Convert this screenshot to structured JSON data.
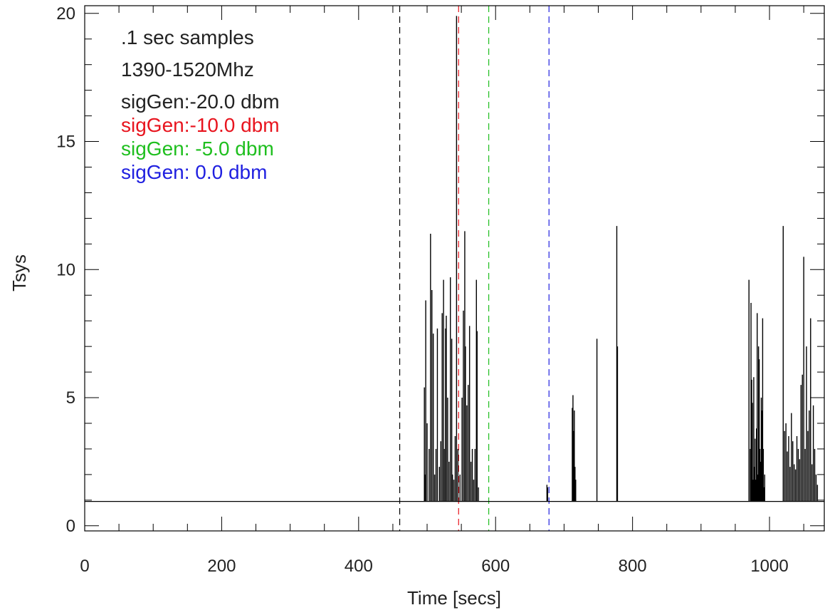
{
  "chart_data": {
    "type": "line",
    "title": "",
    "xlabel": "Time [secs]",
    "ylabel": "Tsys",
    "xlim": [
      0,
      1080
    ],
    "ylim": [
      -0.2,
      20.3
    ],
    "x_ticks": [
      0,
      200,
      400,
      600,
      800,
      1000
    ],
    "y_ticks": [
      0,
      5,
      10,
      15,
      20
    ],
    "x_minor_step": 50,
    "y_minor_step": 1,
    "grid": false,
    "baseline": 0.95,
    "colors": {
      "black": "#000000",
      "red": "#e8141e",
      "green": "#1fbf1f",
      "blue": "#2020e0"
    },
    "annotations": [
      {
        "text": ".1 sec samples",
        "color": "#222222"
      },
      {
        "text": "1390-1520Mhz",
        "color": "#222222"
      },
      {
        "text": "sigGen:-20.0 dbm",
        "color": "#222222"
      },
      {
        "text": "sigGen:-10.0 dbm",
        "color": "#e8141e"
      },
      {
        "text": "sigGen: -5.0 dbm",
        "color": "#1fbf1f"
      },
      {
        "text": "sigGen:  0.0 dbm",
        "color": "#2020e0"
      }
    ],
    "markers": [
      {
        "x": 460,
        "color": "#000000"
      },
      {
        "x": 546,
        "color": "#e8141e"
      },
      {
        "x": 590,
        "color": "#1fbf1f"
      },
      {
        "x": 678,
        "color": "#2020e0"
      }
    ],
    "series": [
      {
        "color": "#000000",
        "x": [
          496,
          497,
          498,
          500,
          503,
          505,
          507,
          509,
          511,
          513,
          515,
          518,
          520,
          522,
          524,
          525,
          527,
          528,
          530,
          532,
          534,
          536,
          537,
          539,
          541,
          543,
          545,
          548,
          551,
          553,
          555,
          556,
          558,
          560,
          562,
          564,
          566,
          568,
          570,
          572,
          573,
          575,
          675,
          676,
          712,
          713,
          714,
          715,
          716,
          717,
          748,
          777,
          778,
          970,
          972,
          973,
          974,
          975,
          976,
          977,
          978,
          979,
          980,
          981,
          982,
          983,
          984,
          985,
          986,
          987,
          988,
          989,
          990,
          991,
          992,
          993,
          1020,
          1022,
          1024,
          1026,
          1028,
          1030,
          1032,
          1034,
          1036,
          1038,
          1040,
          1042,
          1044,
          1046,
          1048,
          1050,
          1052,
          1054,
          1056,
          1058,
          1060,
          1062,
          1064,
          1066,
          1068,
          1070
        ],
        "y": [
          5.4,
          2.0,
          8.8,
          4.0,
          3.0,
          11.4,
          9.2,
          7.5,
          2.0,
          3.0,
          7.7,
          2.3,
          3.3,
          8.3,
          9.6,
          3.0,
          7.7,
          8.2,
          5.0,
          2.5,
          9.7,
          7.3,
          2.0,
          1.8,
          3.5,
          19.9,
          3.0,
          2.0,
          5.0,
          8.4,
          11.5,
          7.0,
          4.7,
          5.5,
          7.8,
          2.5,
          3.0,
          1.8,
          3.0,
          9.6,
          7.6,
          1.5,
          1.6,
          1.5,
          4.6,
          5.1,
          3.7,
          4.5,
          2.3,
          1.8,
          7.3,
          11.7,
          7.0,
          9.6,
          3.0,
          8.7,
          5.7,
          4.8,
          1.8,
          5.8,
          2.3,
          3.4,
          1.8,
          3.8,
          8.3,
          2.0,
          7.0,
          6.5,
          3.0,
          2.5,
          5.0,
          4.5,
          8.1,
          3.0,
          1.5,
          2.0,
          11.7,
          3.7,
          4.0,
          2.9,
          3.5,
          2.3,
          4.4,
          3.3,
          2.4,
          2.2,
          3.5,
          3.0,
          2.6,
          5.5,
          5.9,
          10.5,
          3.0,
          7.0,
          3.7,
          4.5,
          8.1,
          2.4,
          4.7,
          3.0,
          2.0,
          1.6
        ]
      }
    ]
  }
}
